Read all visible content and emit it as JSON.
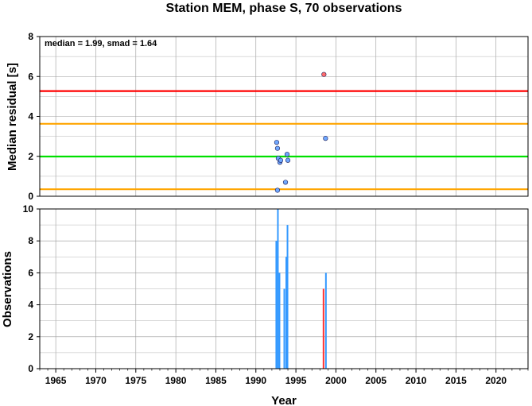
{
  "chart_data": [
    {
      "type": "scatter",
      "title": "Station MEM, phase S, 70 observations",
      "xlabel": "",
      "ylabel": "Median residual [s]",
      "annotation": "median = 1.99, smad = 1.64",
      "xlim": [
        1963,
        2024
      ],
      "ylim": [
        0,
        8
      ],
      "x_ticks": [
        1965,
        1970,
        1975,
        1980,
        1985,
        1990,
        1995,
        2000,
        2005,
        2010,
        2015,
        2020
      ],
      "y_ticks": [
        0,
        2,
        4,
        6,
        8
      ],
      "grid": true,
      "reference_lines": [
        {
          "value": 5.27,
          "color": "#ff0000"
        },
        {
          "value": 3.63,
          "color": "#ffa500"
        },
        {
          "value": 1.99,
          "color": "#00e000"
        },
        {
          "value": 0.35,
          "color": "#ffa500"
        }
      ],
      "series": [
        {
          "color": "#6fa8ff",
          "points": [
            {
              "x": 1992.6,
              "y": 2.7
            },
            {
              "x": 1992.7,
              "y": 2.4
            },
            {
              "x": 1992.8,
              "y": 1.9
            },
            {
              "x": 1993.0,
              "y": 1.7
            },
            {
              "x": 1993.1,
              "y": 1.8
            },
            {
              "x": 1993.7,
              "y": 0.7
            },
            {
              "x": 1993.9,
              "y": 2.1
            },
            {
              "x": 1994.0,
              "y": 1.8
            },
            {
              "x": 1992.7,
              "y": 0.3
            },
            {
              "x": 1998.7,
              "y": 2.9
            }
          ]
        },
        {
          "color": "#ff6b6b",
          "points": [
            {
              "x": 1998.5,
              "y": 6.1
            }
          ]
        }
      ]
    },
    {
      "type": "bar",
      "xlabel": "Year",
      "ylabel": "Observations",
      "xlim": [
        1963,
        2024
      ],
      "ylim": [
        0,
        10
      ],
      "x_ticks": [
        1965,
        1970,
        1975,
        1980,
        1985,
        1990,
        1995,
        2000,
        2005,
        2010,
        2015,
        2020
      ],
      "y_ticks": [
        0,
        2,
        4,
        6,
        8,
        10
      ],
      "grid": true,
      "bars": [
        {
          "x": 1992.55,
          "value": 8,
          "color": "#3399ff"
        },
        {
          "x": 1992.75,
          "value": 10,
          "color": "#3399ff"
        },
        {
          "x": 1992.95,
          "value": 6,
          "color": "#3399ff"
        },
        {
          "x": 1993.55,
          "value": 5,
          "color": "#3399ff"
        },
        {
          "x": 1993.8,
          "value": 7,
          "color": "#3399ff"
        },
        {
          "x": 1993.95,
          "value": 9,
          "color": "#3399ff"
        },
        {
          "x": 1998.45,
          "value": 5,
          "color": "#ff3333"
        },
        {
          "x": 1998.75,
          "value": 6,
          "color": "#3399ff"
        }
      ]
    }
  ]
}
